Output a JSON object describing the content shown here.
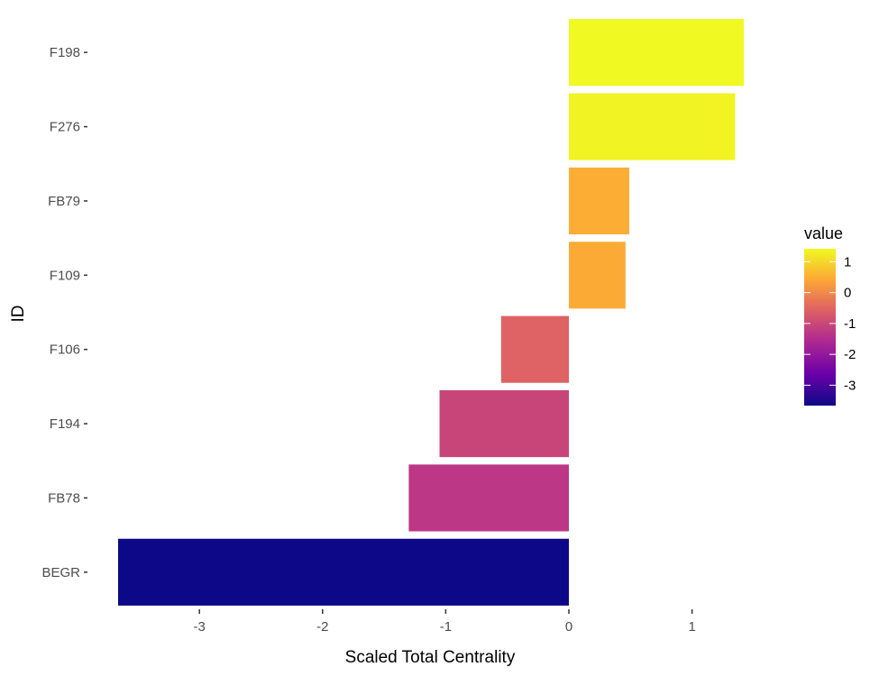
{
  "chart_data": {
    "type": "bar",
    "orientation": "horizontal",
    "title": "",
    "xlabel": "Scaled Total Centrality",
    "ylabel": "ID",
    "categories": [
      "F198",
      "F276",
      "FB79",
      "F109",
      "F106",
      "F194",
      "FB78",
      "BEGR"
    ],
    "values": [
      1.42,
      1.35,
      0.49,
      0.46,
      -0.55,
      -1.05,
      -1.3,
      -3.66
    ],
    "xlim": [
      -3.66,
      1.42
    ],
    "xticks": [
      -3,
      -2,
      -1,
      0,
      1
    ],
    "xtick_labels": [
      "-3",
      "-2",
      "-1",
      "0",
      "1"
    ],
    "grid": false,
    "fill_scale": "plasma",
    "legend": {
      "title": "value",
      "position": "right",
      "range": [
        -3.66,
        1.42
      ],
      "ticks": [
        1,
        0,
        -1,
        -2,
        -3
      ],
      "tick_labels": [
        "1",
        "0",
        "-1",
        "-2",
        "-3"
      ]
    }
  }
}
